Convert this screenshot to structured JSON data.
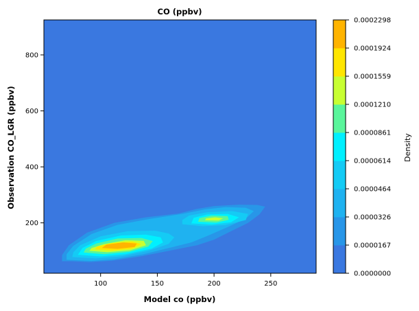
{
  "chart_data": {
    "type": "heatmap",
    "subtype": "kde-density-contour",
    "title": "CO (ppbv)",
    "xlabel": "Model co (ppbv)",
    "ylabel": "Observation CO_LGR (ppbv)",
    "xlim": [
      50,
      290
    ],
    "ylim": [
      20,
      925
    ],
    "xticks": [
      100,
      150,
      200,
      250
    ],
    "yticks": [
      200,
      400,
      600,
      800
    ],
    "grid": false,
    "colorbar": {
      "label": "Density",
      "levels": [
        "0.0000000",
        "0.0000167",
        "0.0000326",
        "0.0000464",
        "0.0000614",
        "0.0000861",
        "0.0001210",
        "0.0001559",
        "0.0001924",
        "0.0002298"
      ],
      "colors": [
        "#3a78e0",
        "#2896e8",
        "#1fb2f0",
        "#14cbf5",
        "#00f0ff",
        "#5af59b",
        "#c8ff32",
        "#ffe600",
        "#ffb400"
      ]
    },
    "contours": [
      {
        "level": 1,
        "polygons": [
          [
            [
              66,
              63
            ],
            [
              75,
              63
            ],
            [
              90,
              60
            ],
            [
              110,
              65
            ],
            [
              135,
              80
            ],
            [
              160,
              100
            ],
            [
              185,
              120
            ],
            [
              200,
              140
            ],
            [
              215,
              170
            ],
            [
              230,
              200
            ],
            [
              240,
              230
            ],
            [
              245,
              258
            ],
            [
              238,
              264
            ],
            [
              222,
              265
            ],
            [
              200,
              260
            ],
            [
              185,
              250
            ],
            [
              168,
              233
            ],
            [
              140,
              220
            ],
            [
              112,
              200
            ],
            [
              88,
              165
            ],
            [
              72,
              120
            ],
            [
              66,
              85
            ]
          ]
        ]
      },
      {
        "level": 2,
        "polygons": [
          [
            [
              70,
              68
            ],
            [
              92,
              64
            ],
            [
              112,
              70
            ],
            [
              138,
              88
            ],
            [
              160,
              110
            ],
            [
              180,
              130
            ],
            [
              195,
              155
            ],
            [
              212,
              185
            ],
            [
              228,
              215
            ],
            [
              235,
              242
            ],
            [
              228,
              254
            ],
            [
              210,
              256
            ],
            [
              192,
              248
            ],
            [
              172,
              232
            ],
            [
              142,
              213
            ],
            [
              115,
              193
            ],
            [
              92,
              160
            ],
            [
              76,
              118
            ],
            [
              70,
              88
            ]
          ]
        ]
      },
      {
        "level": 3,
        "polygons": [
          [
            [
              75,
              78
            ],
            [
              96,
              73
            ],
            [
              118,
              80
            ],
            [
              142,
              100
            ],
            [
              160,
              125
            ],
            [
              165,
              148
            ],
            [
              160,
              162
            ],
            [
              148,
              172
            ],
            [
              124,
              170
            ],
            [
              100,
              152
            ],
            [
              82,
              120
            ],
            [
              76,
              95
            ]
          ],
          [
            [
              172,
              195
            ],
            [
              190,
              188
            ],
            [
              210,
              192
            ],
            [
              228,
              210
            ],
            [
              230,
              232
            ],
            [
              216,
              242
            ],
            [
              194,
              238
            ],
            [
              178,
              226
            ],
            [
              172,
              210
            ]
          ]
        ]
      },
      {
        "level": 4,
        "polygons": [
          [
            [
              80,
              86
            ],
            [
              100,
              80
            ],
            [
              122,
              88
            ],
            [
              145,
              108
            ],
            [
              155,
              130
            ],
            [
              153,
              148
            ],
            [
              140,
              158
            ],
            [
              118,
              155
            ],
            [
              96,
              135
            ],
            [
              84,
              110
            ]
          ],
          [
            [
              180,
              198
            ],
            [
              198,
              194
            ],
            [
              215,
              202
            ],
            [
              222,
              220
            ],
            [
              212,
              232
            ],
            [
              194,
              230
            ],
            [
              182,
              218
            ]
          ]
        ]
      },
      {
        "level": 5,
        "polygons": [
          [
            [
              85,
              94
            ],
            [
              103,
              88
            ],
            [
              125,
              96
            ],
            [
              142,
              115
            ],
            [
              146,
              135
            ],
            [
              136,
              146
            ],
            [
              115,
              144
            ],
            [
              96,
              126
            ],
            [
              87,
              108
            ]
          ],
          [
            [
              186,
              204
            ],
            [
              202,
              201
            ],
            [
              213,
              211
            ],
            [
              212,
              224
            ],
            [
              198,
              226
            ],
            [
              187,
              217
            ]
          ]
        ]
      },
      {
        "level": 6,
        "polygons": [
          [
            [
              90,
              100
            ],
            [
              106,
              95
            ],
            [
              126,
              102
            ],
            [
              140,
              120
            ],
            [
              138,
              136
            ],
            [
              122,
              138
            ],
            [
              103,
              124
            ],
            [
              92,
              110
            ]
          ],
          [
            [
              192,
              209
            ],
            [
              204,
              208
            ],
            [
              208,
              216
            ],
            [
              201,
              220
            ],
            [
              193,
              216
            ]
          ]
        ]
      },
      {
        "level": 7,
        "polygons": [
          [
            [
              95,
              105
            ],
            [
              110,
              101
            ],
            [
              128,
              108
            ],
            [
              136,
              124
            ],
            [
              128,
              133
            ],
            [
              110,
              128
            ],
            [
              97,
              115
            ]
          ]
        ]
      },
      {
        "level": 8,
        "polygons": [
          [
            [
              101,
              110
            ],
            [
              115,
              107
            ],
            [
              130,
              114
            ],
            [
              132,
              126
            ],
            [
              120,
              130
            ],
            [
              105,
              122
            ]
          ]
        ]
      },
      {
        "level": 9,
        "polygons": [
          [
            [
              108,
              115
            ],
            [
              118,
              112
            ],
            [
              130,
              118
            ],
            [
              128,
              127
            ],
            [
              116,
              128
            ],
            [
              108,
              122
            ]
          ]
        ]
      }
    ]
  }
}
